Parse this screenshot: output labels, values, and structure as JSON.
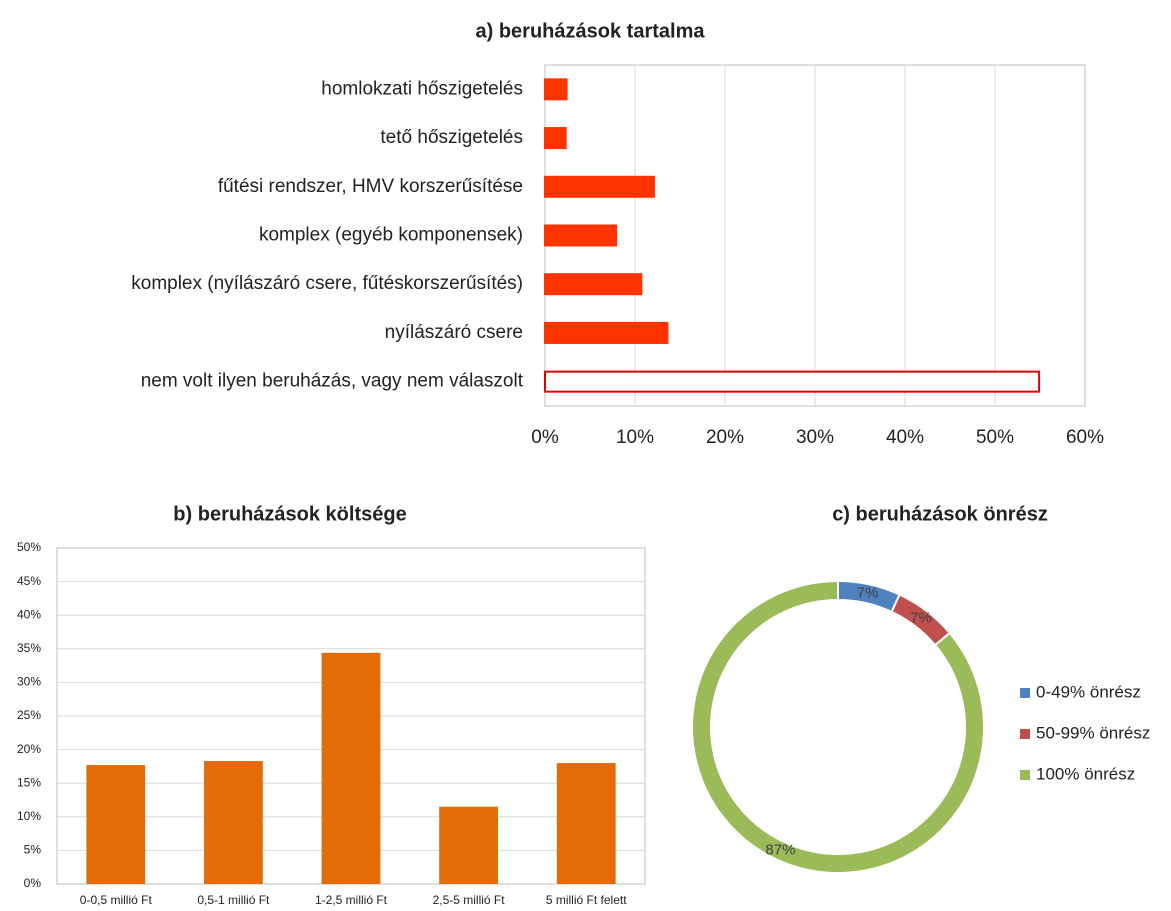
{
  "chart_data": [
    {
      "type": "hbar",
      "title": "a) beruházások tartalma",
      "categories": [
        "homlokzati hőszigetelés",
        "tető hőszigetelés",
        "fűtési rendszer, HMV korszerűsítése",
        "komplex (egyéb komponensek)",
        "komplex (nyílászáró csere,  fűtéskorszerűsítés)",
        "nyílászáró csere",
        "nem volt ilyen beruházás, vagy nem válaszolt"
      ],
      "values": [
        2.4,
        2.3,
        12.1,
        7.9,
        10.7,
        13.6,
        54.9
      ],
      "colors": [
        "#ff3300",
        "#ff3300",
        "#ff3300",
        "#ff3300",
        "#ff3300",
        "#ff3300",
        "#ffffff"
      ],
      "edge_colors": [
        "#ff3300",
        "#ff3300",
        "#ff3300",
        "#ff3300",
        "#ff3300",
        "#ff3300",
        "#e00000"
      ],
      "xlim": [
        0,
        60
      ],
      "xticks": [
        {
          "value": 0,
          "label": "0%"
        },
        {
          "value": 10,
          "label": "10%"
        },
        {
          "value": 20,
          "label": "20%"
        },
        {
          "value": 30,
          "label": "30%"
        },
        {
          "value": 40,
          "label": "40%"
        },
        {
          "value": 50,
          "label": "50%"
        },
        {
          "value": 60,
          "label": "60%"
        }
      ],
      "grid": true
    },
    {
      "type": "bar",
      "title": "b) beruházások költsége",
      "categories": [
        "0-0,5 millió Ft",
        "0,5-1 millió Ft",
        "1-2,5 millió Ft",
        "2,5-5 millió Ft",
        "5 millió Ft felett"
      ],
      "values": [
        17.7,
        18.3,
        34.4,
        11.5,
        18.0
      ],
      "color": "#e36c09",
      "ylim": [
        0,
        50
      ],
      "yticks": [
        {
          "value": 0,
          "label": "0%"
        },
        {
          "value": 5,
          "label": "5%"
        },
        {
          "value": 10,
          "label": "10%"
        },
        {
          "value": 15,
          "label": "15%"
        },
        {
          "value": 20,
          "label": "20%"
        },
        {
          "value": 25,
          "label": "25%"
        },
        {
          "value": 30,
          "label": "30%"
        },
        {
          "value": 35,
          "label": "35%"
        },
        {
          "value": 40,
          "label": "40%"
        },
        {
          "value": 45,
          "label": "45%"
        },
        {
          "value": 50,
          "label": "50%"
        }
      ],
      "grid": true
    },
    {
      "type": "donut",
      "title": "c) beruházások önrész",
      "categories": [
        "0-49% önrész",
        "50-99% önrész",
        "100% önrész"
      ],
      "values": [
        7,
        7,
        87
      ],
      "value_labels": [
        "7%",
        "7%",
        "87%"
      ],
      "colors": [
        "#4f81bd",
        "#c0504d",
        "#9bbb59"
      ],
      "legend": "right"
    }
  ]
}
